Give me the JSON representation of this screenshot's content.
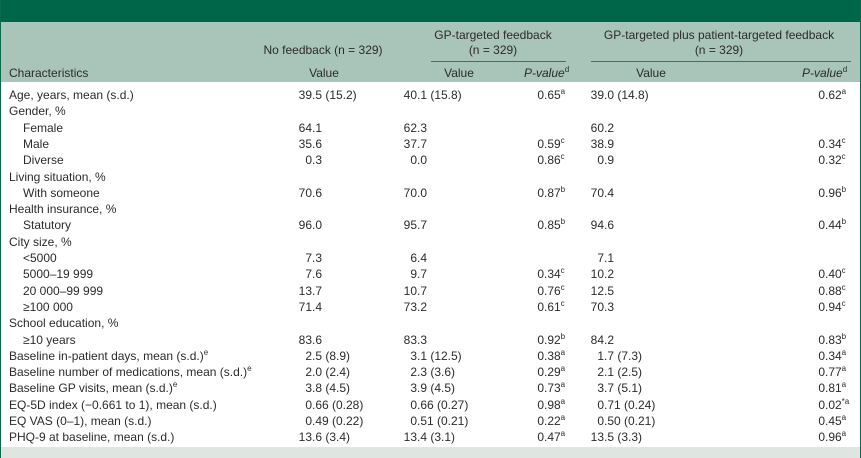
{
  "header": {
    "group_no_feedback": "No feedback (n = 329)",
    "group_gp": "GP-targeted feedback",
    "group_gp_n": "(n = 329)",
    "group_gp_plus": "GP-targeted plus patient-targeted feedback",
    "group_gp_plus_n": "(n = 329)",
    "characteristics": "Characteristics",
    "value": "Value",
    "p_value": "P-value",
    "p_value_sup": "d"
  },
  "rows": [
    {
      "label": "Age, years, mean (s.d.)",
      "sub": false,
      "nf": "39.5 (15.2)",
      "gp": "40.1 (15.8)",
      "gp_p": "0.65",
      "gp_p_sup": "a",
      "gpp": "39.0 (14.8)",
      "gpp_p": "0.62",
      "gpp_p_sup": "a"
    },
    {
      "label": "Gender, %",
      "sub": false
    },
    {
      "label": "Female",
      "sub": true,
      "nf": "64.1",
      "gp": "62.3",
      "gpp": "60.2"
    },
    {
      "label": "Male",
      "sub": true,
      "nf": "35.6",
      "gp": "37.7",
      "gp_p": "0.59",
      "gp_p_sup": "c",
      "gpp": "38.9",
      "gpp_p": "0.34",
      "gpp_p_sup": "c"
    },
    {
      "label": "Diverse",
      "sub": true,
      "nf": "0.3",
      "gp": "0.0",
      "gp_p": "0.86",
      "gp_p_sup": "c",
      "gpp": "0.9",
      "gpp_p": "0.32",
      "gpp_p_sup": "c"
    },
    {
      "label": "Living situation, %",
      "sub": false
    },
    {
      "label": "With someone",
      "sub": true,
      "nf": "70.6",
      "gp": "70.0",
      "gp_p": "0.87",
      "gp_p_sup": "b",
      "gpp": "70.4",
      "gpp_p": "0.96",
      "gpp_p_sup": "b"
    },
    {
      "label": "Health insurance, %",
      "sub": false
    },
    {
      "label": "Statutory",
      "sub": true,
      "nf": "96.0",
      "gp": "95.7",
      "gp_p": "0.85",
      "gp_p_sup": "b",
      "gpp": "94.6",
      "gpp_p": "0.44",
      "gpp_p_sup": "b"
    },
    {
      "label": "City size, %",
      "sub": false
    },
    {
      "label": "<5000",
      "sub": true,
      "nf": "7.3",
      "gp": "6.4",
      "gpp": "7.1"
    },
    {
      "label": "5000–19 999",
      "sub": true,
      "nf": "7.6",
      "gp": "9.7",
      "gp_p": "0.34",
      "gp_p_sup": "c",
      "gpp": "10.2",
      "gpp_p": "0.40",
      "gpp_p_sup": "c"
    },
    {
      "label": "20 000–99 999",
      "sub": true,
      "nf": "13.7",
      "gp": "10.7",
      "gp_p": "0.76",
      "gp_p_sup": "c",
      "gpp": "12.5",
      "gpp_p": "0.88",
      "gpp_p_sup": "c"
    },
    {
      "label": "≥100 000",
      "sub": true,
      "nf": "71.4",
      "gp": "73.2",
      "gp_p": "0.61",
      "gp_p_sup": "c",
      "gpp": "70.3",
      "gpp_p": "0.94",
      "gpp_p_sup": "c"
    },
    {
      "label": "School education, %",
      "sub": false
    },
    {
      "label": "≥10 years",
      "sub": true,
      "nf": "83.6",
      "gp": "83.3",
      "gp_p": "0.92",
      "gp_p_sup": "b",
      "gpp": "84.2",
      "gpp_p": "0.83",
      "gpp_p_sup": "b"
    },
    {
      "label": "Baseline in-patient days, mean (s.d.)",
      "label_sup": "e",
      "sub": false,
      "nf": "2.5 (8.9)",
      "gp": "3.1 (12.5)",
      "gp_p": "0.38",
      "gp_p_sup": "a",
      "gpp": "1.7 (7.3)",
      "gpp_p": "0.34",
      "gpp_p_sup": "a"
    },
    {
      "label": "Baseline number of medications, mean (s.d.)",
      "label_sup": "e",
      "sub": false,
      "nf": "2.0 (2.4)",
      "gp": "2.3 (3.6)",
      "gp_p": "0.29",
      "gp_p_sup": "a",
      "gpp": "2.1 (2.5)",
      "gpp_p": "0.77",
      "gpp_p_sup": "a"
    },
    {
      "label": "Baseline GP visits, mean (s.d.)",
      "label_sup": "e",
      "sub": false,
      "nf": "3.8 (4.5)",
      "gp": "3.9 (4.5)",
      "gp_p": "0.73",
      "gp_p_sup": "a",
      "gpp": "3.7 (5.1)",
      "gpp_p": "0.81",
      "gpp_p_sup": "a"
    },
    {
      "label": "EQ-5D index (−0.661 to 1), mean (s.d.)",
      "sub": false,
      "nf": "0.66 (0.28)",
      "gp": "0.66 (0.27)",
      "gp_p": "0.98",
      "gp_p_sup": "a",
      "gpp": "0.71 (0.24)",
      "gpp_p": "0.02",
      "gpp_p_sup": "*a"
    },
    {
      "label": "EQ VAS (0–1), mean (s.d.)",
      "sub": false,
      "nf": "0.49 (0.22)",
      "gp": "0.51 (0.21)",
      "gp_p": "0.22",
      "gp_p_sup": "a",
      "gpp": "0.50 (0.21)",
      "gpp_p": "0.45",
      "gpp_p_sup": "a"
    },
    {
      "label": "PHQ-9 at baseline, mean (s.d.)",
      "sub": false,
      "nf": "13.6 (3.4)",
      "gp": "13.4 (3.1)",
      "gp_p": "0.47",
      "gp_p_sup": "a",
      "gpp": "13.5 (3.3)",
      "gpp_p": "0.96",
      "gpp_p_sup": "a"
    }
  ]
}
